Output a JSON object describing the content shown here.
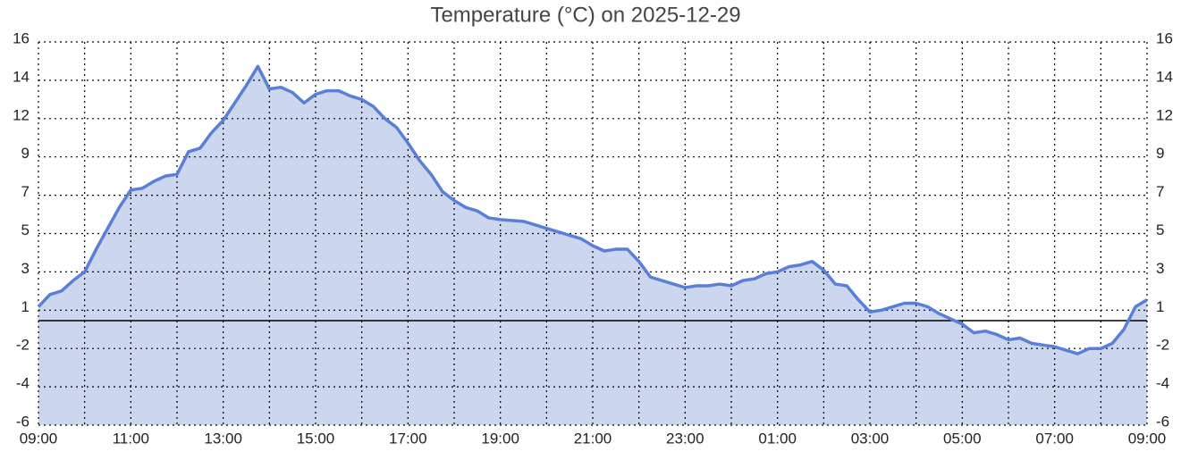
{
  "chart_data": {
    "type": "area",
    "title": "Temperature (°C) on 2025-12-29",
    "series": [
      {
        "color": "#5a7fd6",
        "fill": "#ccd6ef",
        "x": [
          0,
          0.25,
          0.5,
          0.75,
          1,
          1.25,
          1.5,
          1.75,
          2,
          2.25,
          2.5,
          2.75,
          3,
          3.25,
          3.5,
          3.75,
          4,
          4.25,
          4.5,
          4.75,
          5,
          5.25,
          5.5,
          5.75,
          6,
          6.25,
          6.5,
          6.75,
          7,
          7.25,
          7.5,
          7.75,
          8,
          8.25,
          8.5,
          8.75,
          9,
          9.25,
          9.5,
          9.75,
          10,
          10.5,
          11,
          11.25,
          11.5,
          11.75,
          12,
          12.25,
          12.5,
          12.75,
          13,
          13.25,
          13.5,
          13.75,
          14,
          14.25,
          14.5,
          14.75,
          15,
          15.25,
          15.5,
          15.75,
          16,
          16.25,
          16.5,
          16.75,
          17,
          17.25,
          17.5,
          17.75,
          18,
          18.25,
          18.5,
          18.75,
          19,
          19.25,
          19.5,
          19.75,
          20,
          20.25,
          20.5,
          20.75,
          21,
          21.25,
          21.5,
          21.75,
          22,
          22.25,
          22.5,
          22.75,
          23,
          23.25,
          23.5,
          23.75,
          24
        ],
        "values": [
          0.8,
          1.5,
          1.7,
          2.3,
          2.8,
          4.1,
          5.3,
          6.5,
          7.5,
          7.6,
          8.0,
          8.3,
          8.4,
          9.7,
          9.9,
          10.8,
          11.5,
          12.5,
          13.5,
          14.6,
          13.3,
          13.4,
          13.1,
          12.5,
          13.0,
          13.2,
          13.2,
          12.9,
          12.7,
          12.3,
          11.6,
          11.1,
          10.2,
          9.2,
          8.4,
          7.4,
          6.9,
          6.5,
          6.3,
          5.9,
          5.8,
          5.7,
          5.3,
          5.1,
          4.9,
          4.7,
          4.3,
          4.0,
          4.1,
          4.1,
          3.4,
          2.5,
          2.3,
          2.1,
          1.9,
          2.0,
          2.0,
          2.1,
          2.0,
          2.3,
          2.4,
          2.7,
          2.8,
          3.1,
          3.2,
          3.4,
          2.9,
          2.1,
          2.0,
          1.2,
          0.5,
          0.6,
          0.8,
          1.0,
          1.0,
          0.8,
          0.4,
          0.1,
          -0.2,
          -0.7,
          -0.6,
          -0.8,
          -1.1,
          -1.0,
          -1.3,
          -1.4,
          -1.5,
          -1.7,
          -1.9,
          -1.6,
          -1.6,
          -1.3,
          -0.5,
          0.8,
          1.2
        ]
      }
    ],
    "xlim": [
      0,
      24
    ],
    "xticks": [
      {
        "value": 0,
        "label": "09:00"
      },
      {
        "value": 2,
        "label": "11:00"
      },
      {
        "value": 4,
        "label": "13:00"
      },
      {
        "value": 6,
        "label": "15:00"
      },
      {
        "value": 8,
        "label": "17:00"
      },
      {
        "value": 10,
        "label": "19:00"
      },
      {
        "value": 12,
        "label": "21:00"
      },
      {
        "value": 14,
        "label": "23:00"
      },
      {
        "value": 16,
        "label": "01:00"
      },
      {
        "value": 18,
        "label": "03:00"
      },
      {
        "value": 20,
        "label": "05:00"
      },
      {
        "value": 22,
        "label": "07:00"
      },
      {
        "value": 24,
        "label": "09:00"
      }
    ],
    "ylim": [
      -6,
      16
    ],
    "yticks": [
      -6,
      {
        "value": -3.8,
        "label": "-4"
      },
      {
        "value": -1.6,
        "label": "-2"
      },
      {
        "value": 0.6,
        "label": "1"
      },
      {
        "value": 2.8,
        "label": "3"
      },
      5,
      {
        "value": 7.2,
        "label": "7"
      },
      {
        "value": 9.4,
        "label": "9"
      },
      {
        "value": 11.6,
        "label": "12"
      },
      {
        "value": 13.8,
        "label": "14"
      },
      16
    ],
    "zero_line": 0,
    "grid": true
  }
}
